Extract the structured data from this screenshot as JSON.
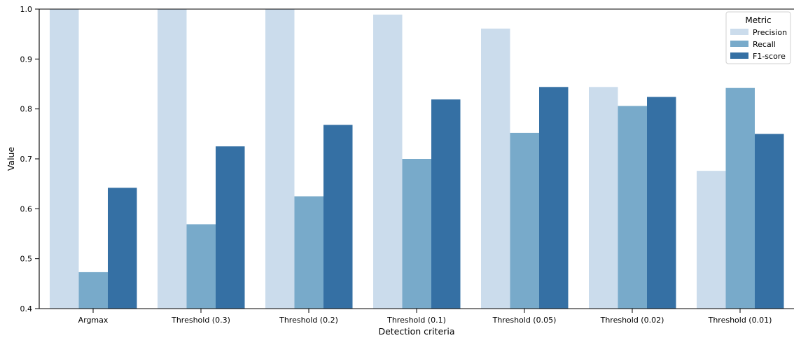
{
  "chart_data": {
    "type": "bar",
    "xlabel": "Detection criteria",
    "ylabel": "Value",
    "ylim": [
      0.4,
      1.0
    ],
    "yticks": [
      0.4,
      0.5,
      0.6,
      0.7,
      0.8,
      0.9,
      1.0
    ],
    "ytick_labels": [
      "0.4",
      "0.5",
      "0.6",
      "0.7",
      "0.8",
      "0.9",
      "1.0"
    ],
    "categories": [
      "Argmax",
      "Threshold (0.3)",
      "Threshold (0.2)",
      "Threshold (0.1)",
      "Threshold (0.05)",
      "Threshold (0.02)",
      "Threshold (0.01)"
    ],
    "legend": {
      "title": "Metric",
      "placement": "top-right"
    },
    "series": [
      {
        "name": "Precision",
        "color": "#cbdcec",
        "values": [
          1.0,
          1.0,
          1.0,
          0.989,
          0.961,
          0.844,
          0.676
        ]
      },
      {
        "name": "Recall",
        "color": "#78aaca",
        "values": [
          0.473,
          0.569,
          0.625,
          0.7,
          0.752,
          0.806,
          0.842
        ]
      },
      {
        "name": "F1-score",
        "color": "#3570a4",
        "values": [
          0.642,
          0.725,
          0.768,
          0.819,
          0.844,
          0.824,
          0.75
        ]
      }
    ],
    "grid": false
  }
}
